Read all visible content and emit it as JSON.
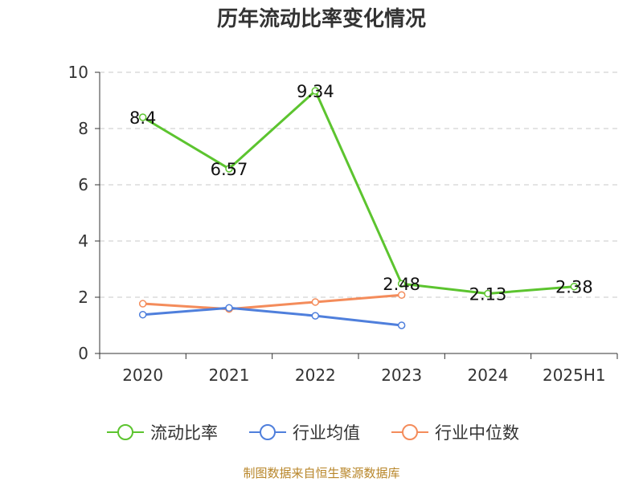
{
  "title": "历年流动比率变化情况",
  "source": "制图数据来自恒生聚源数据库",
  "colors": {
    "current_ratio": "#5cc42f",
    "industry_avg": "#4f7fdc",
    "industry_median": "#f48c5b",
    "axis": "#333333",
    "grid": "#c8c8c8",
    "text": "#333333"
  },
  "chart_data": {
    "type": "line",
    "title": "历年流动比率变化情况",
    "categories": [
      "2020",
      "2021",
      "2022",
      "2023",
      "2024",
      "2025H1"
    ],
    "y_ticks": [
      "0",
      "2",
      "4",
      "6",
      "8",
      "10"
    ],
    "ylim": [
      0,
      10
    ],
    "grid": true,
    "legend_position": "bottom",
    "series": [
      {
        "name": "流动比率",
        "color": "#5cc42f",
        "values": [
          8.4,
          6.57,
          9.34,
          2.48,
          2.13,
          2.38
        ],
        "labels": [
          "8.4",
          "6.57",
          "9.34",
          "2.48",
          "2.13",
          "2.38"
        ]
      },
      {
        "name": "行业均值",
        "color": "#4f7fdc",
        "values": [
          1.38,
          1.62,
          1.34,
          1.0,
          null,
          null
        ]
      },
      {
        "name": "行业中位数",
        "color": "#f48c5b",
        "values": [
          1.77,
          1.58,
          1.83,
          2.08,
          null,
          null
        ]
      }
    ]
  }
}
